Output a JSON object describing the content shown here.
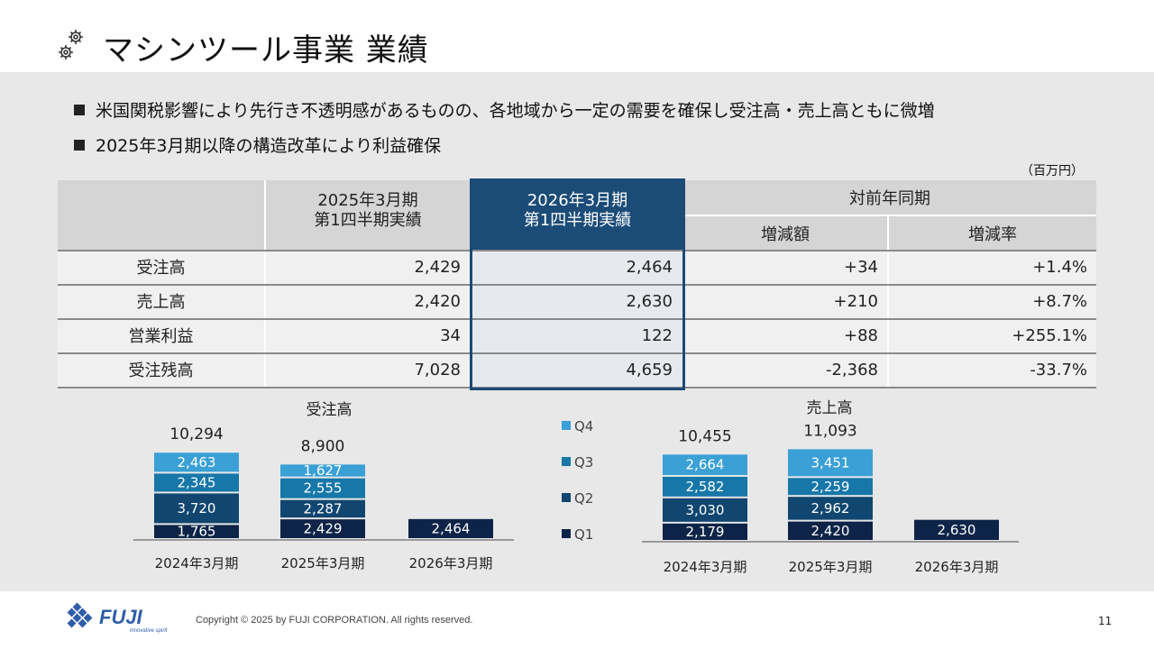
{
  "title": "マシンツール事業 業績",
  "bullets": [
    "米国関税影響により先行き不透明感があるものの、各地域から一定の需要を確保し受注高・売上高ともに微増",
    "2025年3月期以降の構造改革により利益確保"
  ],
  "unit": "（百万円）",
  "table": {
    "col_prev": [
      "2025年3月期",
      "第1四半期実績"
    ],
    "col_curr": [
      "2026年3月期",
      "第1四半期実績"
    ],
    "col_yoy": "対前年同期",
    "col_diff": "増減額",
    "col_rate": "増減率",
    "rows": [
      {
        "label": "受注高",
        "prev": "2,429",
        "curr": "2,464",
        "diff": "+34",
        "rate": "+1.4%"
      },
      {
        "label": "売上高",
        "prev": "2,420",
        "curr": "2,630",
        "diff": "+210",
        "rate": "+8.7%"
      },
      {
        "label": "営業利益",
        "prev": "34",
        "curr": "122",
        "diff": "+88",
        "rate": "+255.1%"
      },
      {
        "label": "受注残高",
        "prev": "7,028",
        "curr": "4,659",
        "diff": "-2,368",
        "rate": "-33.7%"
      }
    ]
  },
  "chart_data": [
    {
      "type": "bar",
      "stacked": true,
      "title": "受注高",
      "categories": [
        "2024年3月期",
        "2025年3月期",
        "2026年3月期"
      ],
      "series": [
        {
          "name": "Q1",
          "values": [
            1765,
            2429,
            2464
          ]
        },
        {
          "name": "Q2",
          "values": [
            3720,
            2287,
            null
          ]
        },
        {
          "name": "Q3",
          "values": [
            2345,
            2555,
            null
          ]
        },
        {
          "name": "Q4",
          "values": [
            2463,
            1627,
            null
          ]
        }
      ],
      "totals": [
        "10,294",
        "8,900",
        ""
      ],
      "labels": [
        [
          "1,765",
          "3,720",
          "2,345",
          "2,463"
        ],
        [
          "2,429",
          "2,287",
          "2,555",
          "1,627"
        ],
        [
          "2,464"
        ]
      ]
    },
    {
      "type": "bar",
      "stacked": true,
      "title": "売上高",
      "categories": [
        "2024年3月期",
        "2025年3月期",
        "2026年3月期"
      ],
      "series": [
        {
          "name": "Q1",
          "values": [
            2179,
            2420,
            2630
          ]
        },
        {
          "name": "Q2",
          "values": [
            3030,
            2962,
            null
          ]
        },
        {
          "name": "Q3",
          "values": [
            2582,
            2259,
            null
          ]
        },
        {
          "name": "Q4",
          "values": [
            2664,
            3451,
            null
          ]
        }
      ],
      "totals": [
        "10,455",
        "11,093",
        ""
      ],
      "labels": [
        [
          "2,179",
          "3,030",
          "2,582",
          "2,664"
        ],
        [
          "2,420",
          "2,962",
          "2,259",
          "3,451"
        ],
        [
          "2,630"
        ]
      ]
    }
  ],
  "legend": [
    "Q4",
    "Q3",
    "Q2",
    "Q1"
  ],
  "colors": {
    "Q1": "#0d2448",
    "Q2": "#10466f",
    "Q3": "#1677a8",
    "Q4": "#3aa0d6",
    "highlight": "#1b4b77"
  },
  "footer": {
    "copyright": "Copyright © 2025 by FUJI CORPORATION. All rights reserved.",
    "page": "11",
    "logo_text": "FUJI",
    "logo_tagline": "innovative spirit"
  }
}
